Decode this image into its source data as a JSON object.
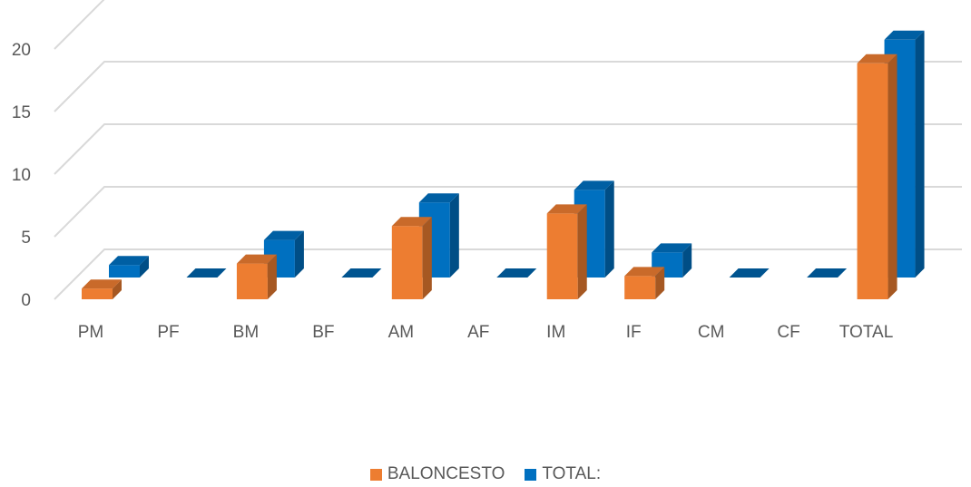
{
  "chart_data": {
    "type": "bar",
    "title": "",
    "xlabel": "",
    "ylabel": "",
    "categories": [
      "PM",
      "PF",
      "BM",
      "BF",
      "AM",
      "AF",
      "IM",
      "IF",
      "CM",
      "CF",
      "TOTAL"
    ],
    "series": [
      {
        "name": "BALONCESTO",
        "color": "#ED7D31",
        "values": [
          1,
          0,
          3,
          0,
          6,
          0,
          7,
          2,
          0,
          0,
          19
        ]
      },
      {
        "name": "TOTAL:",
        "color": "#0070C0",
        "values": [
          1,
          0,
          3,
          0,
          6,
          0,
          7,
          2,
          0,
          0,
          19
        ]
      }
    ],
    "ylim": [
      0,
      20
    ],
    "yticks": [
      "0",
      "5",
      "10",
      "15",
      "20"
    ],
    "grid": true,
    "legend": "bottom",
    "style": "3d-clustered-column"
  }
}
